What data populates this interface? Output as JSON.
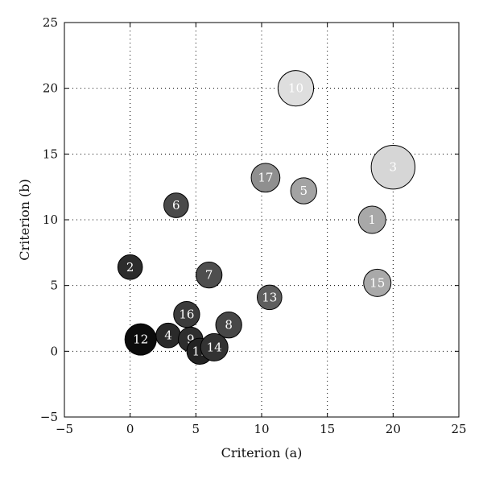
{
  "chart_data": {
    "type": "scatter",
    "title": "",
    "xlabel": "Criterion (a)",
    "ylabel": "Criterion (b)",
    "xlim": [
      -5,
      25
    ],
    "ylim": [
      -5,
      25
    ],
    "xticks": [
      "−5",
      "0",
      "5",
      "10",
      "15",
      "20",
      "25"
    ],
    "yticks": [
      "−5",
      "0",
      "5",
      "10",
      "15",
      "20",
      "25"
    ],
    "grid": true,
    "points": [
      {
        "label": "1",
        "x": 18.4,
        "y": 10.0,
        "size": 1.0,
        "shade": "#a8a8a8",
        "text_color": "#ffffff"
      },
      {
        "label": "2",
        "x": 0.0,
        "y": 6.4,
        "size": 0.9,
        "shade": "#2c2c2c",
        "text_color": "#ffffff"
      },
      {
        "label": "3",
        "x": 20.0,
        "y": 14.0,
        "size": 1.6,
        "shade": "#d6d6d6",
        "text_color": "#ffffff"
      },
      {
        "label": "4",
        "x": 2.9,
        "y": 1.2,
        "size": 0.9,
        "shade": "#2a2a2a",
        "text_color": "#ffffff"
      },
      {
        "label": "5",
        "x": 13.2,
        "y": 12.2,
        "size": 0.95,
        "shade": "#a3a3a3",
        "text_color": "#ffffff"
      },
      {
        "label": "6",
        "x": 3.5,
        "y": 11.1,
        "size": 0.9,
        "shade": "#4a4a4a",
        "text_color": "#ffffff"
      },
      {
        "label": "7",
        "x": 6.0,
        "y": 5.8,
        "size": 0.95,
        "shade": "#4e4e4e",
        "text_color": "#ffffff"
      },
      {
        "label": "8",
        "x": 7.5,
        "y": 2.0,
        "size": 0.95,
        "shade": "#474747",
        "text_color": "#ffffff"
      },
      {
        "label": "9",
        "x": 4.6,
        "y": 0.9,
        "size": 0.9,
        "shade": "#2e2e2e",
        "text_color": "#ffffff"
      },
      {
        "label": "10",
        "x": 12.6,
        "y": 20.0,
        "size": 1.3,
        "shade": "#dedede",
        "text_color": "#ffffff"
      },
      {
        "label": "11",
        "x": 5.3,
        "y": 0.0,
        "size": 0.95,
        "shade": "#232323",
        "text_color": "#ffffff"
      },
      {
        "label": "12",
        "x": 0.8,
        "y": 0.9,
        "size": 1.15,
        "shade": "#0c0c0c",
        "text_color": "#ffffff"
      },
      {
        "label": "13",
        "x": 10.6,
        "y": 4.1,
        "size": 0.9,
        "shade": "#5e5e5e",
        "text_color": "#ffffff"
      },
      {
        "label": "14",
        "x": 6.4,
        "y": 0.3,
        "size": 1.0,
        "shade": "#333333",
        "text_color": "#ffffff"
      },
      {
        "label": "15",
        "x": 18.8,
        "y": 5.2,
        "size": 1.0,
        "shade": "#a9a9a9",
        "text_color": "#ffffff"
      },
      {
        "label": "16",
        "x": 4.3,
        "y": 2.8,
        "size": 0.95,
        "shade": "#3b3b3b",
        "text_color": "#ffffff"
      },
      {
        "label": "17",
        "x": 10.3,
        "y": 13.2,
        "size": 1.05,
        "shade": "#8f8f8f",
        "text_color": "#ffffff"
      }
    ]
  }
}
